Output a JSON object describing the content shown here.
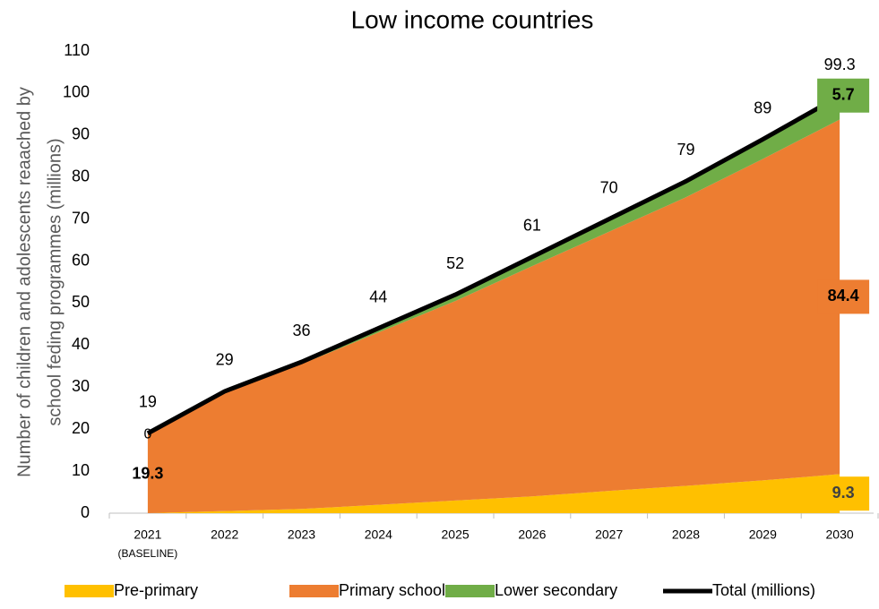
{
  "chart_data": {
    "type": "stacked_area",
    "title": "Low income countries",
    "ylabel": [
      "Number of children and adolescents reaached by",
      "school feding programmes (millions)"
    ],
    "categories": [
      "2021",
      "2022",
      "2023",
      "2024",
      "2025",
      "2026",
      "2027",
      "2028",
      "2029",
      "2030"
    ],
    "x_annotation": "(BASELINE)",
    "series": [
      {
        "name": "Pre-primary",
        "color": "#FFC000",
        "values": [
          0,
          0.5,
          1,
          2,
          3,
          4,
          5.3,
          6.5,
          7.8,
          9.3
        ]
      },
      {
        "name": "Primary school",
        "color": "#ED7D31",
        "values": [
          19.3,
          28.3,
          34.5,
          41,
          47.5,
          54.8,
          61.7,
          68.7,
          76.5,
          84.4
        ]
      },
      {
        "name": "Lower secondary",
        "color": "#70AD47",
        "values": [
          0,
          0.2,
          0.5,
          1,
          1.5,
          2.2,
          3,
          3.8,
          4.7,
          5.7
        ]
      },
      {
        "name": "Total (millions)",
        "color": "#000000",
        "type": "line",
        "values": [
          19,
          29,
          36,
          44,
          52,
          61,
          70,
          79,
          89,
          99.3
        ]
      }
    ],
    "ylim": [
      0,
      110
    ],
    "yticks": [
      0,
      10,
      20,
      30,
      40,
      50,
      60,
      70,
      80,
      90,
      100,
      110
    ],
    "legend": "bottom"
  }
}
